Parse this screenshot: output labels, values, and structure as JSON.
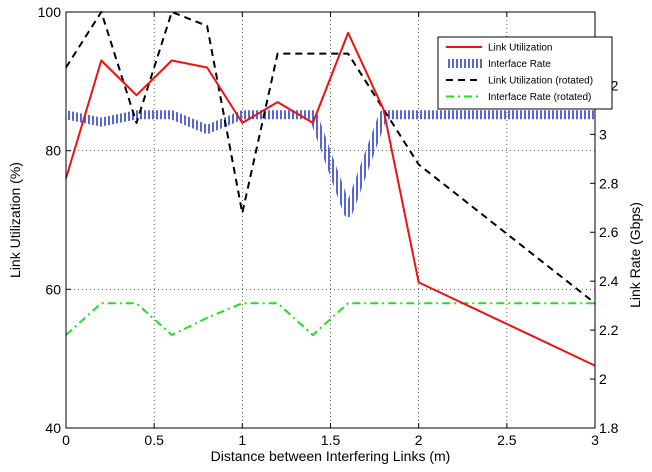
{
  "chart_data": {
    "type": "line",
    "xlabel": "Distance between Interfering Links (m)",
    "ylabel": "Link Utilization (%)",
    "y2label": "Link Rate (Gbps)",
    "xlim": [
      0,
      3
    ],
    "ylim": [
      40,
      100
    ],
    "y2lim": [
      1.8,
      3.5
    ],
    "x_ticks": [
      "0",
      "0.5",
      "1",
      "1.5",
      "2",
      "2.5",
      "3"
    ],
    "y_ticks": [
      "40",
      "60",
      "80",
      "100"
    ],
    "y2_ticks": [
      "1.8",
      "2",
      "2.2",
      "2.4",
      "2.6",
      "2.8",
      "3",
      "3.2"
    ],
    "grid": true,
    "legend_position": "top-right",
    "series": [
      {
        "name": "Link Utilization",
        "axis": "left",
        "style": "solid",
        "color": "#ee1111",
        "x": [
          0,
          0.2,
          0.4,
          0.6,
          0.8,
          1.0,
          1.2,
          1.4,
          1.6,
          1.8,
          2.0,
          3.0
        ],
        "y": [
          76,
          93,
          88,
          93,
          92,
          84,
          87,
          84,
          97,
          86,
          61,
          49
        ]
      },
      {
        "name": "Interface Rate",
        "axis": "right",
        "style": "hatched",
        "color": "#5566dd",
        "x": [
          0,
          0.2,
          0.4,
          0.6,
          0.8,
          1.0,
          1.2,
          1.4,
          1.6,
          1.8,
          2.0,
          3.0
        ],
        "y": [
          3.08,
          3.05,
          3.08,
          3.08,
          3.02,
          3.08,
          3.08,
          3.08,
          2.68,
          3.08,
          3.08,
          3.08
        ]
      },
      {
        "name": "Link Utilization (rotated)",
        "axis": "left",
        "style": "dashed",
        "color": "#000000",
        "x": [
          0,
          0.2,
          0.4,
          0.6,
          0.8,
          1.0,
          1.2,
          1.4,
          1.6,
          2.0,
          3.0
        ],
        "y": [
          92,
          100,
          84,
          100,
          98,
          71,
          94,
          94,
          94,
          78,
          58
        ]
      },
      {
        "name": "Interface Rate (rotated)",
        "axis": "right",
        "style": "dashdot",
        "color": "#22dd22",
        "x": [
          0,
          0.2,
          0.4,
          0.6,
          0.8,
          1.0,
          1.2,
          1.4,
          1.6,
          3.0
        ],
        "y": [
          2.18,
          2.31,
          2.31,
          2.18,
          2.25,
          2.31,
          2.31,
          2.18,
          2.31,
          2.31
        ]
      }
    ]
  }
}
